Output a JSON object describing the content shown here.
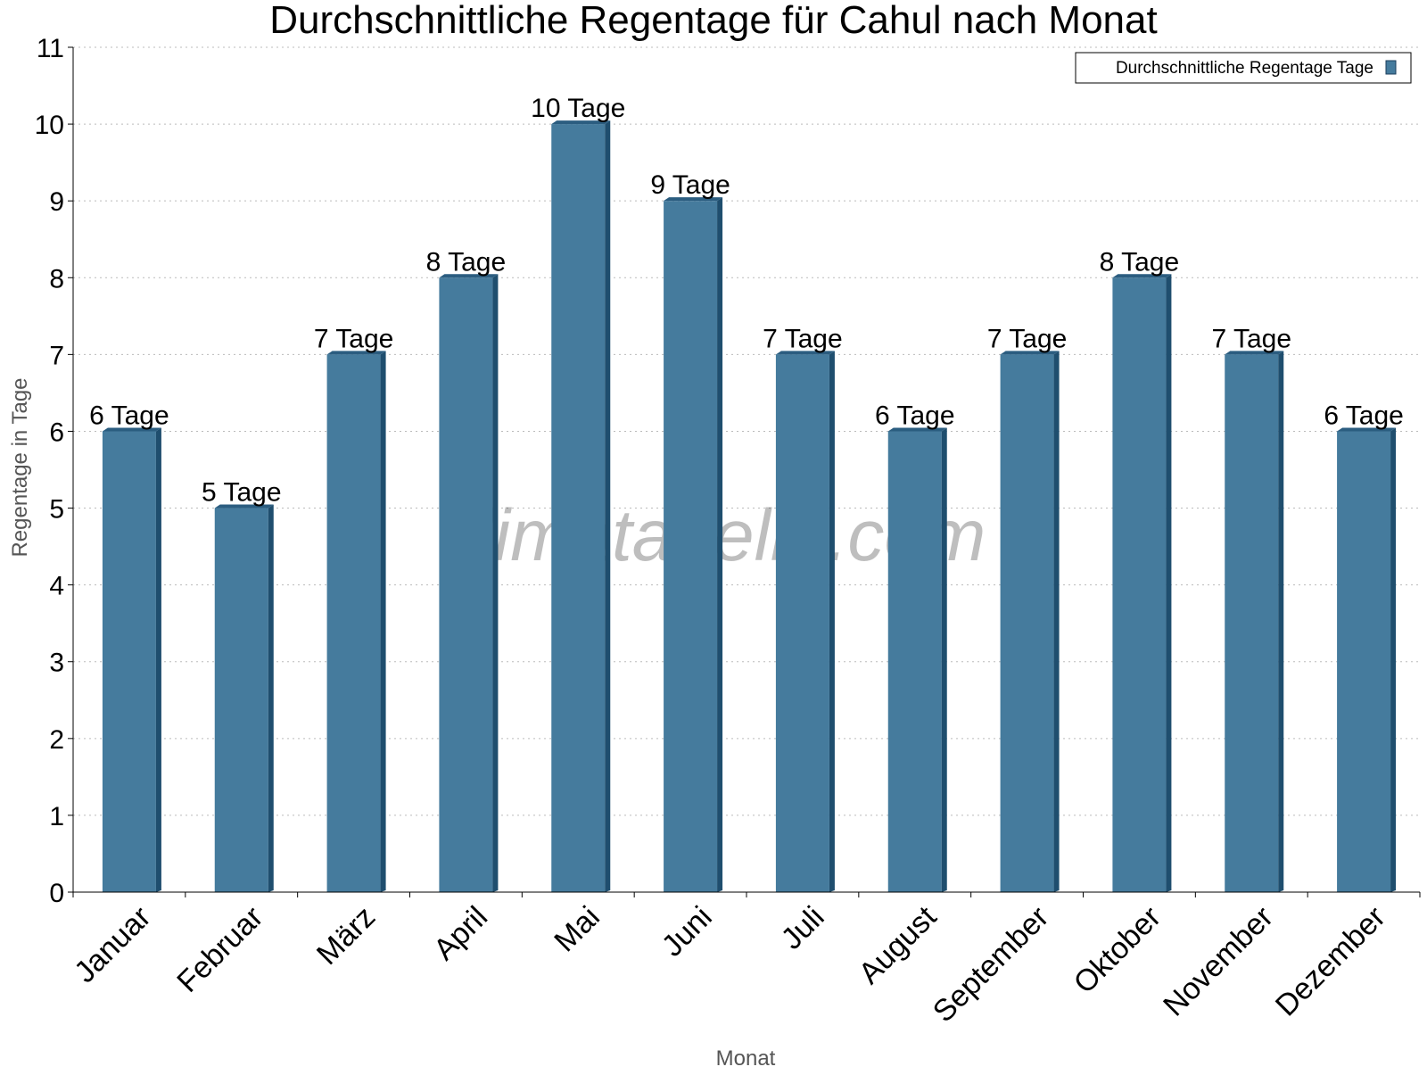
{
  "chart_data": {
    "type": "bar",
    "title": "Durchschnittliche Regentage für Cahul nach Monat",
    "xlabel": "Monat",
    "ylabel": "Regentage in Tage",
    "categories": [
      "Januar",
      "Februar",
      "März",
      "April",
      "Mai",
      "Juni",
      "Juli",
      "August",
      "September",
      "Oktober",
      "November",
      "Dezember"
    ],
    "series": [
      {
        "name": "Durchschnittliche Regentage Tage",
        "values": [
          6,
          5,
          7,
          8,
          10,
          9,
          7,
          6,
          7,
          8,
          7,
          6
        ],
        "color": "#457b9d"
      }
    ],
    "data_labels": [
      "6 Tage",
      "5 Tage",
      "7 Tage",
      "8 Tage",
      "10 Tage",
      "9 Tage",
      "7 Tage",
      "6 Tage",
      "7 Tage",
      "8 Tage",
      "7 Tage",
      "6 Tage"
    ],
    "ylim": [
      0,
      11
    ],
    "yticks": [
      0,
      1,
      2,
      3,
      4,
      5,
      6,
      7,
      8,
      9,
      10,
      11
    ],
    "grid": true,
    "legend_position": "top-right",
    "watermark": "klimatabelle.com"
  }
}
